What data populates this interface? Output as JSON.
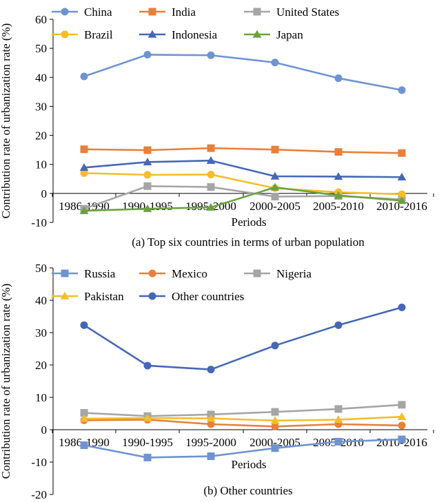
{
  "chart_data": [
    {
      "type": "line",
      "caption": "(a) Top six countries in terms of urban population",
      "xlabel": "Periods",
      "ylabel": "Contribution rate of urbanization rate (%)",
      "ylim": [
        -10,
        60
      ],
      "yticks": [
        -10,
        0,
        10,
        20,
        30,
        40,
        50,
        60
      ],
      "categories": [
        "1986-1990",
        "1990-1995",
        "1995-2000",
        "2000-2005",
        "2005-2010",
        "2010-2016"
      ],
      "grid": false,
      "legend_position": "top",
      "series": [
        {
          "name": "China",
          "color": "#6f93d0",
          "marker": "circle",
          "values": [
            40.3,
            47.8,
            47.6,
            45.1,
            39.7,
            35.6
          ]
        },
        {
          "name": "India",
          "color": "#e8803a",
          "marker": "square",
          "values": [
            15.2,
            14.9,
            15.6,
            15.1,
            14.3,
            13.9
          ]
        },
        {
          "name": "United States",
          "color": "#a5a5a5",
          "marker": "square",
          "values": [
            -5.3,
            2.5,
            2.2,
            -1.1,
            -0.9,
            -2.1
          ]
        },
        {
          "name": "Brazil",
          "color": "#f4bd2a",
          "marker": "circle",
          "values": [
            7.0,
            6.4,
            6.5,
            1.8,
            0.4,
            -0.3
          ]
        },
        {
          "name": "Indonesia",
          "color": "#4567b5",
          "marker": "triangle",
          "values": [
            8.9,
            10.8,
            11.3,
            5.9,
            5.8,
            5.6
          ]
        },
        {
          "name": "Japan",
          "color": "#6aa23f",
          "marker": "triangle",
          "values": [
            -6.0,
            -5.3,
            -4.8,
            2.1,
            -0.7,
            -2.5
          ]
        }
      ]
    },
    {
      "type": "line",
      "caption": "(b) Other countries",
      "xlabel": "Periods",
      "ylabel": "Contribution rate of urbanization rate (%)",
      "ylim": [
        -20,
        50
      ],
      "yticks": [
        -20,
        -10,
        0,
        10,
        20,
        30,
        40,
        50
      ],
      "categories": [
        "1986-1990",
        "1990-1995",
        "1995-2000",
        "2000-2005",
        "2005-2010",
        "2010-2016"
      ],
      "grid": false,
      "legend_position": "top",
      "series": [
        {
          "name": "Russia",
          "color": "#6f93d0",
          "marker": "square",
          "values": [
            -4.8,
            -8.6,
            -8.2,
            -5.7,
            -3.7,
            -3.0
          ]
        },
        {
          "name": "Mexico",
          "color": "#e8803a",
          "marker": "circle",
          "values": [
            2.9,
            3.1,
            1.7,
            1.0,
            1.7,
            1.3
          ]
        },
        {
          "name": "Nigeria",
          "color": "#a5a5a5",
          "marker": "square",
          "values": [
            5.2,
            4.2,
            4.7,
            5.5,
            6.4,
            7.7
          ]
        },
        {
          "name": "Pakistan",
          "color": "#f4bd2a",
          "marker": "triangle",
          "values": [
            3.4,
            3.6,
            3.5,
            2.8,
            3.1,
            4.0
          ]
        },
        {
          "name": "Other countries",
          "color": "#4567b5",
          "marker": "circle",
          "values": [
            32.3,
            19.8,
            18.6,
            26.0,
            32.3,
            37.8
          ]
        }
      ]
    }
  ]
}
